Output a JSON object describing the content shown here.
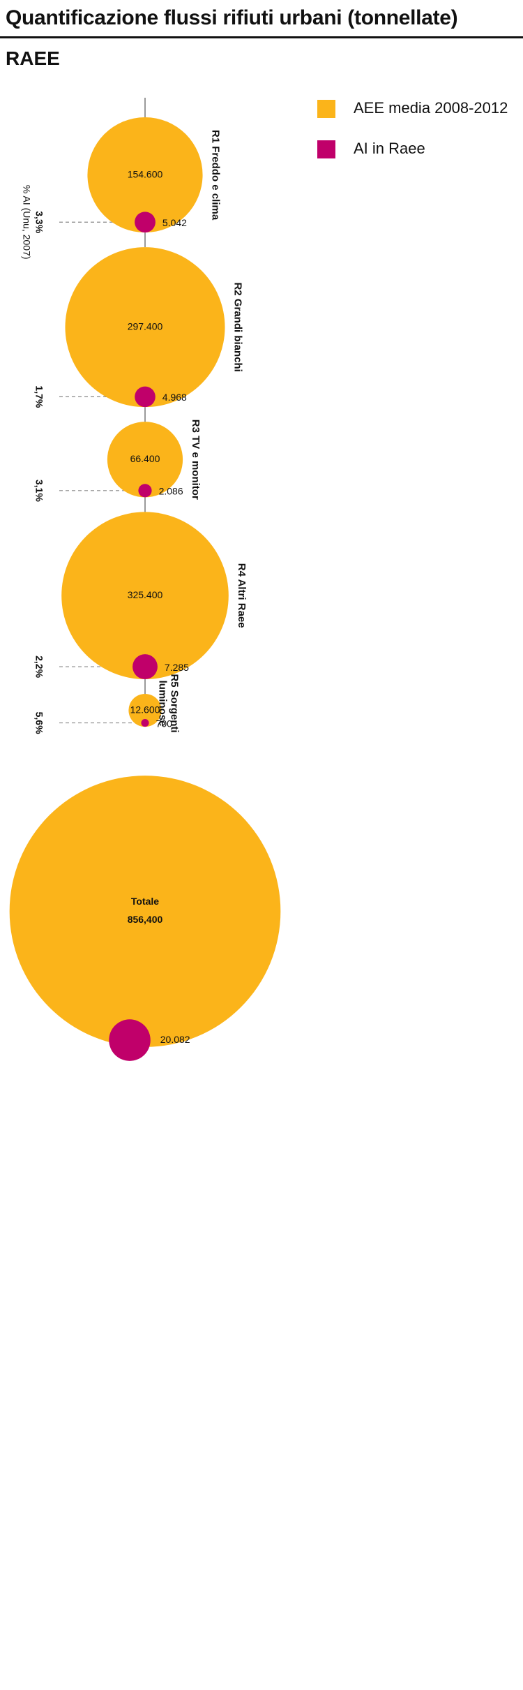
{
  "title": "Quantificazione flussi rifiuti urbani (tonnellate)",
  "subtitle": "RAEE",
  "legend": [
    {
      "label": "AEE media 2008-2012",
      "color": "#FBB41A"
    },
    {
      "label": "AI in Raee",
      "color": "#C0006A"
    }
  ],
  "colors": {
    "aee": "#FBB41A",
    "ai": "#C0006A",
    "connector": "#777777",
    "guide": "#888888"
  },
  "chart_data": {
    "type": "bubble",
    "series": [
      {
        "name": "AEE media 2008-2012",
        "color": "#FBB41A"
      },
      {
        "name": "AI in Raee",
        "color": "#C0006A"
      }
    ],
    "percent_note": "% AI (Unu, 2007)",
    "categories": [
      {
        "name": "R1 Freddo e clima",
        "aee": 154600,
        "aee_label": "154.600",
        "ai": 5042,
        "ai_label": "5.042",
        "pct": "3,3%"
      },
      {
        "name": "R2 Grandi bianchi",
        "aee": 297400,
        "aee_label": "297.400",
        "ai": 4968,
        "ai_label": "4.968",
        "pct": "1,7%"
      },
      {
        "name": "R3 TV e monitor",
        "aee": 66400,
        "aee_label": "66.400",
        "ai": 2086,
        "ai_label": "2.086",
        "pct": "3,1%"
      },
      {
        "name": "R4 Altri Raee",
        "aee": 325400,
        "aee_label": "325.400",
        "ai": 7285,
        "ai_label": "7.285",
        "pct": "2,2%"
      },
      {
        "name": "R5 Sorgenti luminose",
        "name_lines": [
          "R5 Sorgenti",
          "luminose"
        ],
        "aee": 12600,
        "aee_label": "12.600",
        "ai": 700,
        "ai_label": "700",
        "pct": "5,6%"
      }
    ],
    "total": {
      "name": "Totale",
      "aee": 856400,
      "aee_label": "856,400",
      "ai": 20082,
      "ai_label": "20.082"
    }
  }
}
